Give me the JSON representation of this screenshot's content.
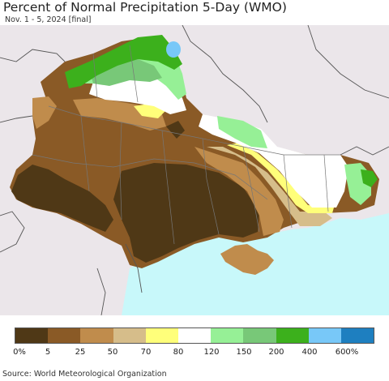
{
  "title": "Percent of Normal Precipitation 5-Day (WMO)",
  "subtitle": "Nov. 1 - 5, 2024 [final]",
  "source": "Source: World Meteorological Organization",
  "legend": {
    "colors": [
      "#4f3816",
      "#8a5a26",
      "#c08c4c",
      "#d6bd8a",
      "#ffff7a",
      "#ffffff",
      "#96f096",
      "#78c878",
      "#3cb01c",
      "#78c8f8",
      "#1e7fc0"
    ],
    "ticks": [
      "0%",
      "5",
      "25",
      "50",
      "70",
      "80",
      "120",
      "150",
      "200",
      "400",
      "600%"
    ]
  },
  "map_colors": {
    "outside": "#ebe6ea",
    "sea": "#c8f8fa",
    "very_dry": "#4f3816",
    "dry": "#8a5a26",
    "dryish": "#c08c4c",
    "tan": "#d6bd8a",
    "yellow": "#ffff7a",
    "normal": "#ffffff",
    "light_green": "#96f096",
    "green": "#78c878",
    "dark_green": "#3cb01c",
    "light_blue": "#78c8f8"
  }
}
